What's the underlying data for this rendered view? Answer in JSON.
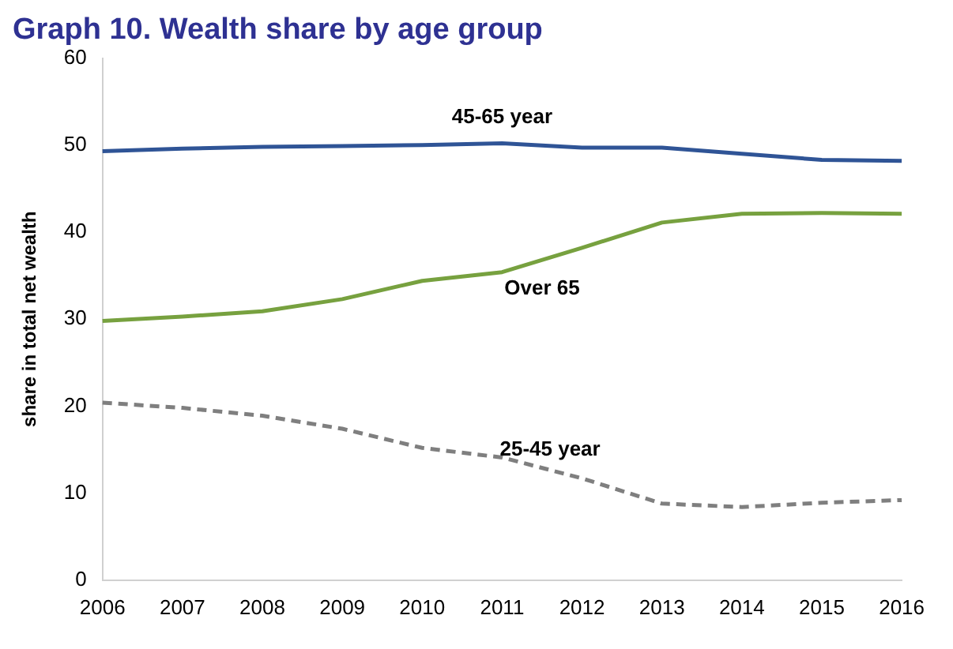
{
  "chart_data": {
    "type": "line",
    "title": "Graph 10. Wealth share by age group",
    "ylabel": "share in total net wealth",
    "categories": [
      "2006",
      "2007",
      "2008",
      "2009",
      "2010",
      "2011",
      "2012",
      "2013",
      "2014",
      "2015",
      "2016"
    ],
    "series": [
      {
        "name": "45-65 year",
        "color": "#2f5496",
        "values": [
          49.3,
          49.6,
          49.8,
          49.9,
          50.0,
          50.2,
          49.7,
          49.7,
          49.0,
          48.3,
          48.2
        ]
      },
      {
        "name": "Over 65",
        "color": "#77a13f",
        "values": [
          29.8,
          30.3,
          30.9,
          32.3,
          34.4,
          35.4,
          38.2,
          41.1,
          42.1,
          42.2,
          42.1
        ]
      },
      {
        "name": "25-45 year",
        "color": "#7f7f7f",
        "line_style": "dashed",
        "values": [
          20.4,
          19.8,
          18.9,
          17.4,
          15.2,
          14.1,
          11.7,
          8.8,
          8.4,
          8.9,
          9.2
        ]
      }
    ],
    "ylim": [
      0,
      60
    ],
    "yticks": [
      0,
      10,
      20,
      30,
      40,
      50,
      60
    ],
    "grid": false,
    "legend": false
  }
}
